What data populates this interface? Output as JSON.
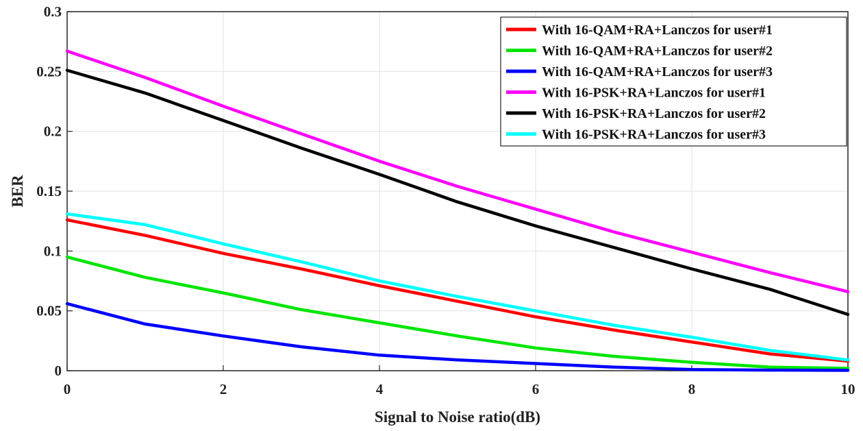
{
  "chart_data": {
    "type": "line",
    "title": "",
    "xlabel": "Signal to Noise ratio(dB)",
    "ylabel": "BER",
    "xlim": [
      0,
      10
    ],
    "ylim": [
      0,
      0.3
    ],
    "xticks": [
      0,
      2,
      4,
      6,
      8,
      10
    ],
    "xtick_labels": [
      "0",
      "2",
      "4",
      "6",
      "8",
      "10"
    ],
    "yticks": [
      0,
      0.05,
      0.1,
      0.15,
      0.2,
      0.25,
      0.3
    ],
    "ytick_labels": [
      "0",
      "0.05",
      "0.1",
      "0.15",
      "0.2",
      "0.25",
      "0.3"
    ],
    "grid": true,
    "legend_position": "top-right",
    "x": [
      0,
      1,
      2,
      3,
      4,
      5,
      6,
      7,
      8,
      9,
      10
    ],
    "series": [
      {
        "name": "With 16-QAM+RA+Lanczos for user#1",
        "color": "#ff0000",
        "values": [
          0.126,
          0.113,
          0.098,
          0.085,
          0.071,
          0.058,
          0.045,
          0.034,
          0.024,
          0.014,
          0.008
        ]
      },
      {
        "name": "With 16-QAM+RA+Lanczos for user#2",
        "color": "#00e600",
        "values": [
          0.095,
          0.078,
          0.065,
          0.051,
          0.04,
          0.029,
          0.019,
          0.012,
          0.007,
          0.003,
          0.002
        ]
      },
      {
        "name": "With 16-QAM+RA+Lanczos for user#3",
        "color": "#0000ff",
        "values": [
          0.056,
          0.039,
          0.029,
          0.02,
          0.013,
          0.009,
          0.006,
          0.003,
          0.001,
          0.0005,
          0.0003
        ]
      },
      {
        "name": "With 16-PSK+RA+Lanczos for user#1",
        "color": "#ff00ff",
        "values": [
          0.267,
          0.245,
          0.221,
          0.198,
          0.175,
          0.154,
          0.135,
          0.116,
          0.099,
          0.082,
          0.066
        ]
      },
      {
        "name": "With 16-PSK+RA+Lanczos for user#2",
        "color": "#000000",
        "values": [
          0.251,
          0.232,
          0.209,
          0.186,
          0.164,
          0.141,
          0.121,
          0.103,
          0.085,
          0.068,
          0.047
        ]
      },
      {
        "name": "With 16-PSK+RA+Lanczos for user#3",
        "color": "#00ffff",
        "values": [
          0.131,
          0.122,
          0.106,
          0.091,
          0.075,
          0.062,
          0.05,
          0.038,
          0.028,
          0.017,
          0.009
        ]
      }
    ]
  }
}
